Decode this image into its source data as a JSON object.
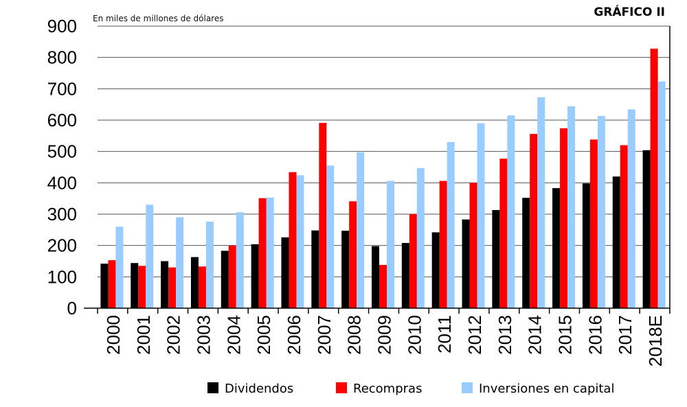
{
  "chart_data": {
    "type": "bar",
    "title": "GRÁFICO II",
    "unit_label": "En miles de millones de dólares",
    "xlabel": "",
    "ylabel": "",
    "ylim": [
      0,
      900
    ],
    "yticks": [
      0,
      100,
      200,
      300,
      400,
      500,
      600,
      700,
      800,
      900
    ],
    "grid": true,
    "legend_position": "bottom",
    "categories": [
      "2000",
      "2001",
      "2002",
      "2003",
      "2004",
      "2005",
      "2006",
      "2007",
      "2008",
      "2009",
      "2010",
      "2011",
      "2012",
      "2013",
      "2014",
      "2015",
      "2016",
      "2017",
      "2018E"
    ],
    "series": [
      {
        "name": "Dividendos",
        "color": "#000000",
        "values": [
          142,
          144,
          150,
          163,
          183,
          204,
          226,
          248,
          247,
          198,
          208,
          242,
          283,
          313,
          352,
          383,
          398,
          420,
          504
        ]
      },
      {
        "name": "Recompras",
        "color": "#ff0000",
        "values": [
          153,
          135,
          130,
          133,
          200,
          351,
          434,
          591,
          341,
          138,
          300,
          406,
          400,
          477,
          556,
          574,
          538,
          520,
          828
        ]
      },
      {
        "name": "Inversiones en capital",
        "color": "#99ccff",
        "values": [
          260,
          330,
          290,
          276,
          306,
          353,
          424,
          455,
          497,
          406,
          447,
          530,
          590,
          615,
          673,
          644,
          613,
          634,
          723
        ]
      }
    ]
  }
}
